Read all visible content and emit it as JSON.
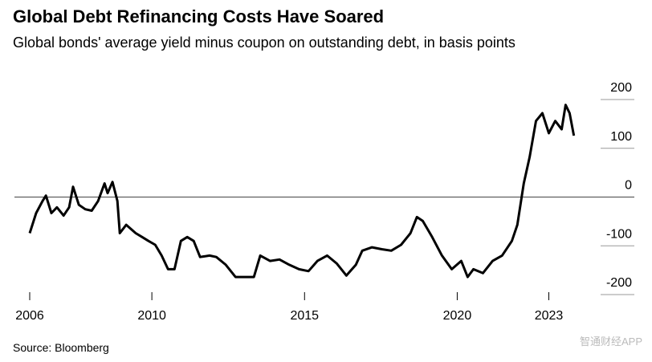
{
  "chart_data": {
    "type": "line",
    "title": "Global Debt Refinancing Costs Have Soared",
    "subtitle": "Global bonds' average yield minus coupon on outstanding debt, in basis points",
    "source": "Source: Bloomberg",
    "watermark": "智通财经APP",
    "xlim": [
      2005.5,
      2025.8
    ],
    "xticks": [
      2006,
      2010,
      2015,
      2020,
      2023
    ],
    "ylim": [
      -200,
      200
    ],
    "yticks": [
      -200,
      -100,
      0,
      100,
      200
    ],
    "series": [
      {
        "name": "Yield minus coupon",
        "color": "#000000",
        "x": [
          2006.0,
          2006.21,
          2006.42,
          2006.53,
          2006.71,
          2006.89,
          2007.11,
          2007.29,
          2007.42,
          2007.61,
          2007.82,
          2008.03,
          2008.24,
          2008.45,
          2008.55,
          2008.71,
          2008.87,
          2008.95,
          2009.16,
          2009.47,
          2009.68,
          2009.89,
          2010.11,
          2010.32,
          2010.53,
          2010.74,
          2010.95,
          2011.16,
          2011.37,
          2011.58,
          2011.89,
          2012.11,
          2012.42,
          2012.74,
          2013.05,
          2013.34,
          2013.55,
          2013.87,
          2014.18,
          2014.5,
          2014.82,
          2015.13,
          2015.42,
          2015.74,
          2016.05,
          2016.37,
          2016.68,
          2016.89,
          2017.21,
          2017.53,
          2017.84,
          2018.16,
          2018.47,
          2018.68,
          2018.87,
          2019.18,
          2019.5,
          2019.82,
          2020.13,
          2020.34,
          2020.53,
          2020.84,
          2021.16,
          2021.47,
          2021.79,
          2021.97,
          2022.18,
          2022.37,
          2022.58,
          2022.79,
          2023.0,
          2023.21,
          2023.42,
          2023.55,
          2023.68,
          2023.82
        ],
        "values": [
          -74,
          -33,
          -8,
          3,
          -33,
          -21,
          -38,
          -21,
          21,
          -16,
          -25,
          -28,
          -8,
          28,
          8,
          31,
          -8,
          -74,
          -57,
          -74,
          -82,
          -90,
          -98,
          -120,
          -148,
          -148,
          -90,
          -82,
          -90,
          -123,
          -120,
          -123,
          -139,
          -164,
          -164,
          -164,
          -120,
          -131,
          -128,
          -139,
          -148,
          -152,
          -131,
          -120,
          -136,
          -161,
          -139,
          -110,
          -103,
          -107,
          -110,
          -98,
          -74,
          -41,
          -49,
          -82,
          -120,
          -148,
          -131,
          -164,
          -148,
          -156,
          -131,
          -120,
          -90,
          -57,
          28,
          82,
          156,
          172,
          131,
          156,
          139,
          189,
          172,
          126
        ]
      }
    ]
  }
}
